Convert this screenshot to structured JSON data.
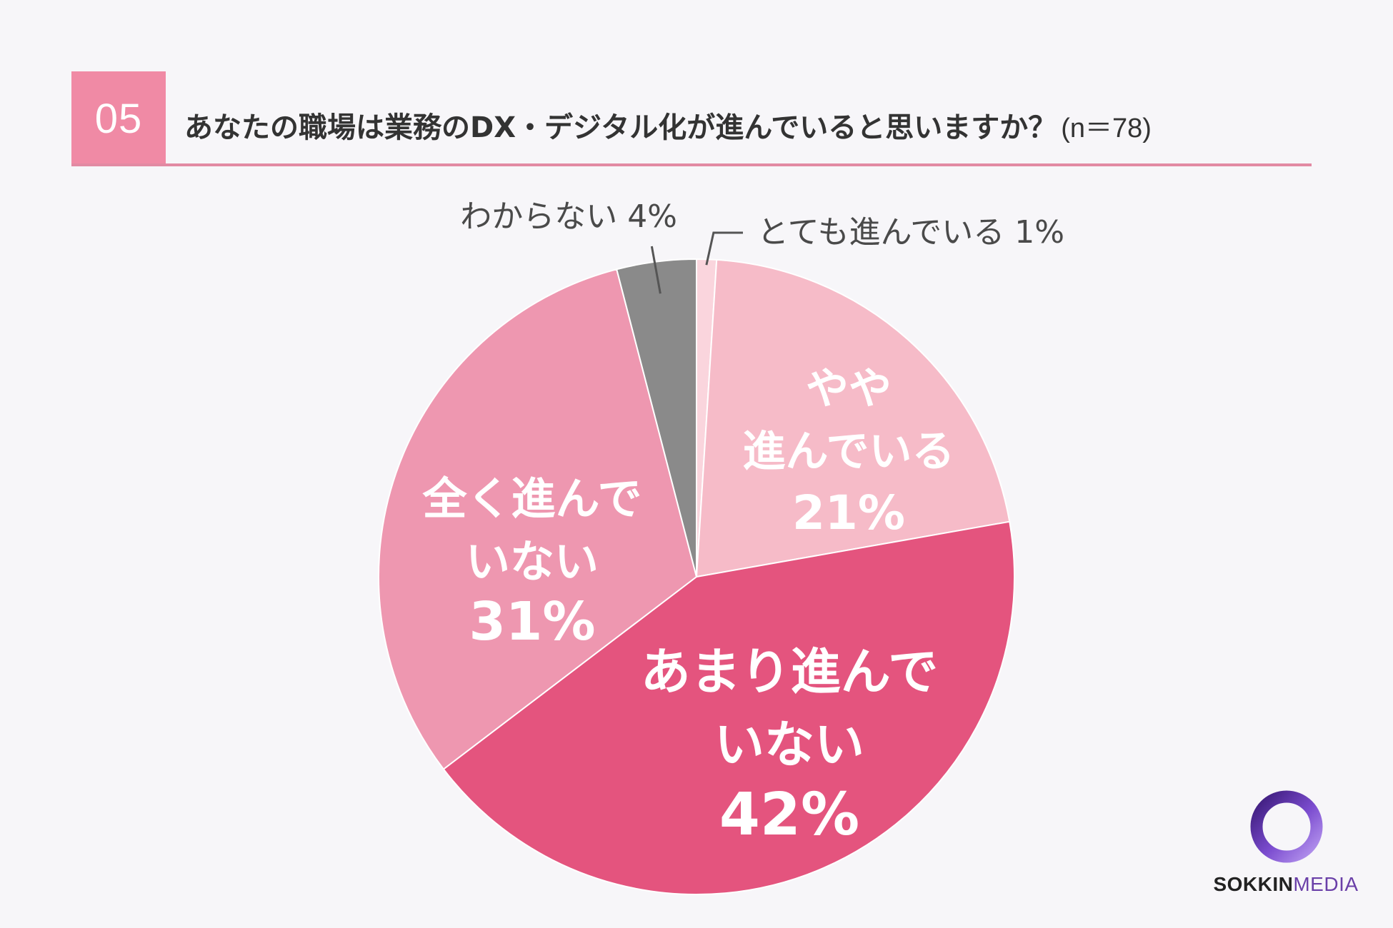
{
  "header": {
    "number": "05",
    "title": "あなたの職場は業務のDX・デジタル化が進んでいると思いますか？",
    "sample": "(n＝78)"
  },
  "chart_data": {
    "type": "pie",
    "slices": [
      {
        "label": "とても進んでいる",
        "value": 1,
        "display": "1%",
        "color": "#fad5dd"
      },
      {
        "label": "やや進んでいる",
        "value": 21,
        "display": "21%",
        "color": "#f6bbc8"
      },
      {
        "label": "あまり進んでいない",
        "value": 42,
        "display": "42%",
        "color": "#e4547e"
      },
      {
        "label": "全く進んでいない",
        "value": 31,
        "display": "31%",
        "color": "#ee97b0"
      },
      {
        "label": "わからない",
        "value": 4,
        "display": "4%",
        "color": "#8a8a8a"
      }
    ]
  },
  "logo": {
    "bold": "SOKKIN",
    "light": "MEDIA"
  }
}
